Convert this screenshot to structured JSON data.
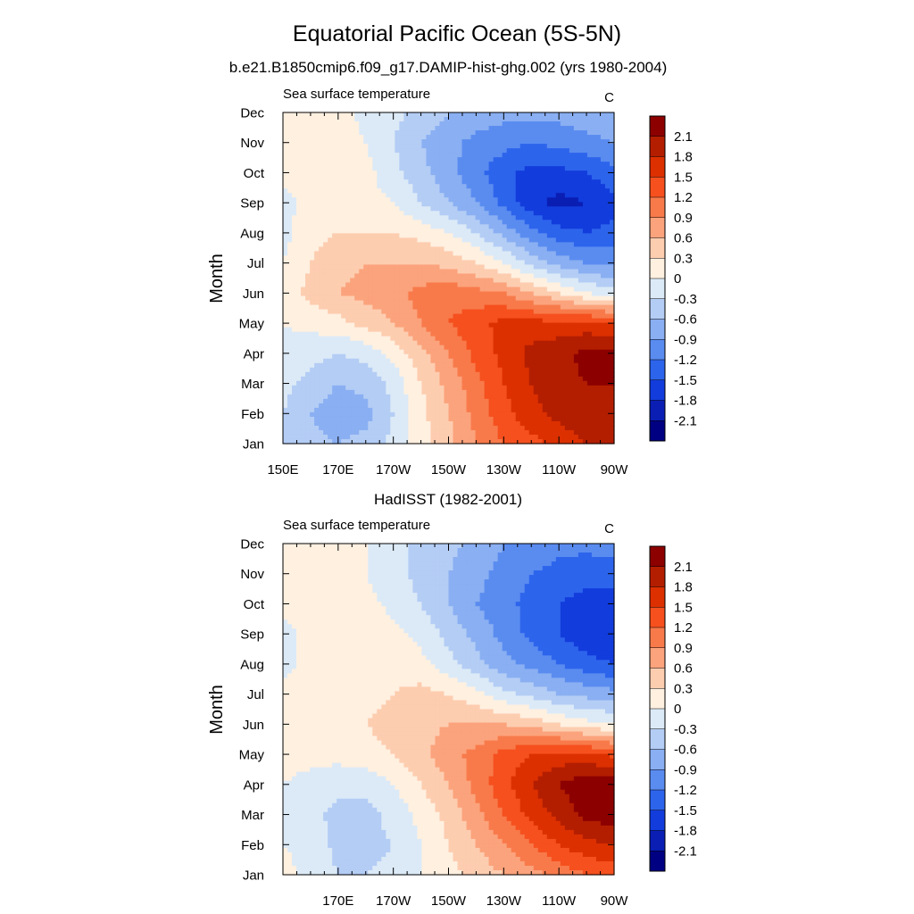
{
  "figure": {
    "title": "Equatorial Pacific Ocean (5S-5N)"
  },
  "chart_data": [
    {
      "type": "heatmap",
      "title": "b.e21.B1850cmip6.f09_g17.DAMIP-hist-ghg.002 (yrs 1980-2004)",
      "left_label": "Sea surface temperature",
      "right_label": "C",
      "ylabel": "Month",
      "x_ticks": [
        {
          "lon": 150,
          "label": "150E"
        },
        {
          "lon": 170,
          "label": "170E"
        },
        {
          "lon": 190,
          "label": "170W"
        },
        {
          "lon": 210,
          "label": "150W"
        },
        {
          "lon": 230,
          "label": "130W"
        },
        {
          "lon": 250,
          "label": "110W"
        },
        {
          "lon": 270,
          "label": "90W"
        }
      ],
      "xlim": [
        150,
        270
      ],
      "y_ticks": [
        "Jan",
        "Feb",
        "Mar",
        "Apr",
        "May",
        "Jun",
        "Jul",
        "Aug",
        "Sep",
        "Oct",
        "Nov",
        "Dec"
      ],
      "lon": [
        150,
        160,
        170,
        180,
        190,
        200,
        210,
        220,
        230,
        240,
        250,
        260,
        270
      ],
      "months": [
        "Jan",
        "Feb",
        "Mar",
        "Apr",
        "May",
        "Jun",
        "Jul",
        "Aug",
        "Sep",
        "Oct",
        "Nov",
        "Dec"
      ],
      "values": [
        [
          -0.3,
          -0.5,
          -0.6,
          -0.5,
          -0.2,
          0.2,
          0.5,
          0.9,
          1.2,
          1.4,
          1.6,
          1.8,
          1.9
        ],
        [
          -0.3,
          -0.6,
          -0.8,
          -0.7,
          -0.3,
          0.2,
          0.6,
          1.0,
          1.4,
          1.7,
          1.9,
          2.0,
          2.0
        ],
        [
          -0.2,
          -0.4,
          -0.6,
          -0.5,
          -0.2,
          0.3,
          0.7,
          1.1,
          1.5,
          1.8,
          2.0,
          2.1,
          2.1
        ],
        [
          -0.1,
          -0.2,
          -0.3,
          -0.2,
          0.1,
          0.5,
          0.9,
          1.3,
          1.6,
          1.9,
          2.0,
          2.2,
          2.2
        ],
        [
          0.0,
          0.1,
          0.2,
          0.4,
          0.6,
          0.9,
          1.2,
          1.4,
          1.6,
          1.6,
          1.6,
          1.6,
          1.5
        ],
        [
          0.1,
          0.4,
          0.6,
          0.7,
          0.8,
          1.0,
          1.1,
          1.0,
          0.9,
          0.6,
          0.3,
          0.0,
          -0.2
        ],
        [
          0.0,
          0.3,
          0.5,
          0.6,
          0.6,
          0.6,
          0.5,
          0.3,
          0.0,
          -0.4,
          -0.7,
          -0.9,
          -1.0
        ],
        [
          -0.1,
          0.2,
          0.3,
          0.3,
          0.3,
          0.2,
          0.0,
          -0.3,
          -0.7,
          -1.1,
          -1.4,
          -1.5,
          -1.4
        ],
        [
          -0.1,
          0.1,
          0.2,
          0.1,
          0.0,
          -0.3,
          -0.6,
          -0.9,
          -1.3,
          -1.7,
          -1.9,
          -1.8,
          -1.6
        ],
        [
          0.1,
          0.2,
          0.2,
          0.1,
          -0.2,
          -0.5,
          -0.8,
          -1.1,
          -1.4,
          -1.6,
          -1.6,
          -1.5,
          -1.3
        ],
        [
          0.2,
          0.2,
          0.2,
          0.0,
          -0.3,
          -0.6,
          -0.8,
          -1.0,
          -1.1,
          -1.2,
          -1.1,
          -1.0,
          -0.9
        ],
        [
          0.2,
          0.2,
          0.1,
          -0.1,
          -0.2,
          -0.4,
          -0.6,
          -0.7,
          -0.8,
          -0.8,
          -0.8,
          -0.7,
          -0.6
        ]
      ],
      "legend": {
        "labels": [
          "2.1",
          "1.8",
          "1.5",
          "1.2",
          "0.9",
          "0.6",
          "0.3",
          "0",
          "-0.3",
          "-0.6",
          "-0.9",
          "-1.2",
          "-1.5",
          "-1.8",
          "-2.1"
        ],
        "colors": [
          "#8c0000",
          "#b31e00",
          "#dc3000",
          "#f5501e",
          "#f87a4b",
          "#fba37c",
          "#fdcdb0",
          "#fff0e0",
          "#dceaf7",
          "#b4cdf5",
          "#8aaff2",
          "#5a8cf0",
          "#2d64ec",
          "#123cdc",
          "#0a1eb4",
          "#000082"
        ]
      }
    },
    {
      "type": "heatmap",
      "title": "HadISST (1982-2001)",
      "left_label": "Sea surface temperature",
      "right_label": "C",
      "ylabel": "Month",
      "x_ticks": [
        {
          "lon": 170,
          "label": "170E"
        },
        {
          "lon": 190,
          "label": "170W"
        },
        {
          "lon": 210,
          "label": "150W"
        },
        {
          "lon": 230,
          "label": "130W"
        },
        {
          "lon": 250,
          "label": "110W"
        },
        {
          "lon": 270,
          "label": "90W"
        }
      ],
      "xlim": [
        150,
        270
      ],
      "y_ticks": [
        "Jan",
        "Feb",
        "Mar",
        "Apr",
        "May",
        "Jun",
        "Jul",
        "Aug",
        "Sep",
        "Oct",
        "Nov",
        "Dec"
      ],
      "lon": [
        150,
        160,
        170,
        180,
        190,
        200,
        210,
        220,
        230,
        240,
        250,
        260,
        270
      ],
      "months": [
        "Jan",
        "Feb",
        "Mar",
        "Apr",
        "May",
        "Jun",
        "Jul",
        "Aug",
        "Sep",
        "Oct",
        "Nov",
        "Dec"
      ],
      "values": [
        [
          0.1,
          -0.1,
          -0.3,
          -0.3,
          -0.2,
          0.0,
          0.2,
          0.4,
          0.6,
          0.8,
          1.0,
          1.2,
          1.3
        ],
        [
          0.0,
          -0.1,
          -0.4,
          -0.4,
          -0.3,
          0.0,
          0.3,
          0.6,
          0.9,
          1.2,
          1.5,
          1.7,
          1.8
        ],
        [
          0.0,
          -0.2,
          -0.4,
          -0.4,
          -0.2,
          0.1,
          0.4,
          0.8,
          1.2,
          1.6,
          1.9,
          2.2,
          2.3
        ],
        [
          0.0,
          -0.1,
          -0.2,
          -0.2,
          0.0,
          0.3,
          0.6,
          1.0,
          1.4,
          1.8,
          2.1,
          2.3,
          2.3
        ],
        [
          0.1,
          0.1,
          0.1,
          0.2,
          0.3,
          0.5,
          0.8,
          1.0,
          1.3,
          1.5,
          1.6,
          1.6,
          1.4
        ],
        [
          0.2,
          0.2,
          0.2,
          0.3,
          0.4,
          0.5,
          0.6,
          0.6,
          0.6,
          0.5,
          0.3,
          0.1,
          0.0
        ],
        [
          0.1,
          0.2,
          0.2,
          0.2,
          0.3,
          0.4,
          0.3,
          0.1,
          -0.2,
          -0.4,
          -0.6,
          -0.7,
          -0.8
        ],
        [
          -0.1,
          0.1,
          0.2,
          0.2,
          0.2,
          0.1,
          -0.2,
          -0.5,
          -0.8,
          -1.0,
          -1.2,
          -1.4,
          -1.5
        ],
        [
          -0.1,
          0.1,
          0.2,
          0.3,
          0.1,
          -0.1,
          -0.4,
          -0.7,
          -1.0,
          -1.3,
          -1.5,
          -1.7,
          -1.8
        ],
        [
          0.1,
          0.2,
          0.2,
          0.1,
          -0.1,
          -0.3,
          -0.6,
          -0.9,
          -1.1,
          -1.3,
          -1.5,
          -1.6,
          -1.6
        ],
        [
          0.2,
          0.2,
          0.2,
          0.0,
          -0.2,
          -0.4,
          -0.6,
          -0.8,
          -1.0,
          -1.2,
          -1.3,
          -1.4,
          -1.4
        ],
        [
          0.2,
          0.2,
          0.2,
          0.0,
          -0.2,
          -0.4,
          -0.5,
          -0.7,
          -0.9,
          -1.0,
          -1.1,
          -1.1,
          -1.0
        ]
      ],
      "legend": {
        "labels": [
          "2.1",
          "1.8",
          "1.5",
          "1.2",
          "0.9",
          "0.6",
          "0.3",
          "0",
          "-0.3",
          "-0.6",
          "-0.9",
          "-1.2",
          "-1.5",
          "-1.8",
          "-2.1"
        ],
        "colors": [
          "#8c0000",
          "#b31e00",
          "#dc3000",
          "#f5501e",
          "#f87a4b",
          "#fba37c",
          "#fdcdb0",
          "#fff0e0",
          "#dceaf7",
          "#b4cdf5",
          "#8aaff2",
          "#5a8cf0",
          "#2d64ec",
          "#123cdc",
          "#0a1eb4",
          "#000082"
        ]
      }
    }
  ]
}
